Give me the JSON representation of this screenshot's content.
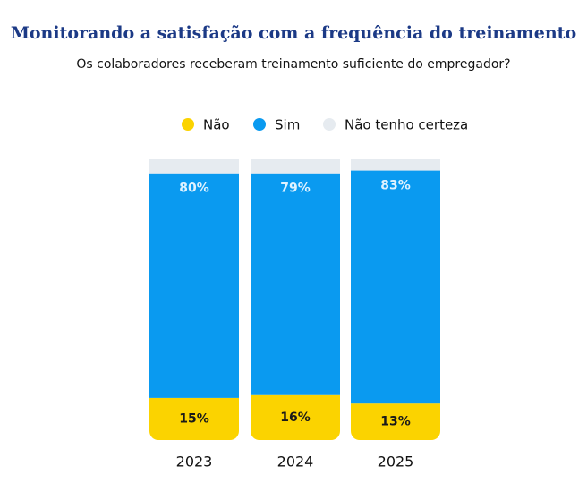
{
  "chart_data": {
    "type": "stacked-bar",
    "title": "Monitorando a satisfação com a frequência do treinamento",
    "subtitle": "Os colaboradores receberam treinamento suficiente do empregador?",
    "categories": [
      "2023",
      "2024",
      "2025"
    ],
    "ylim": [
      0,
      100
    ],
    "legend": "top",
    "series": [
      {
        "name": "Não",
        "color": "#fbd300",
        "values": [
          15,
          16,
          13
        ],
        "value_labels": [
          "15%",
          "16%",
          "13%"
        ]
      },
      {
        "name": "Sim",
        "color": "#0a9af0",
        "values": [
          80,
          79,
          83
        ],
        "value_labels": [
          "80%",
          "79%",
          "83%"
        ]
      },
      {
        "name": "Não tenho certeza",
        "color": "#e6ebf0",
        "values": [
          5,
          5,
          4
        ]
      }
    ]
  }
}
